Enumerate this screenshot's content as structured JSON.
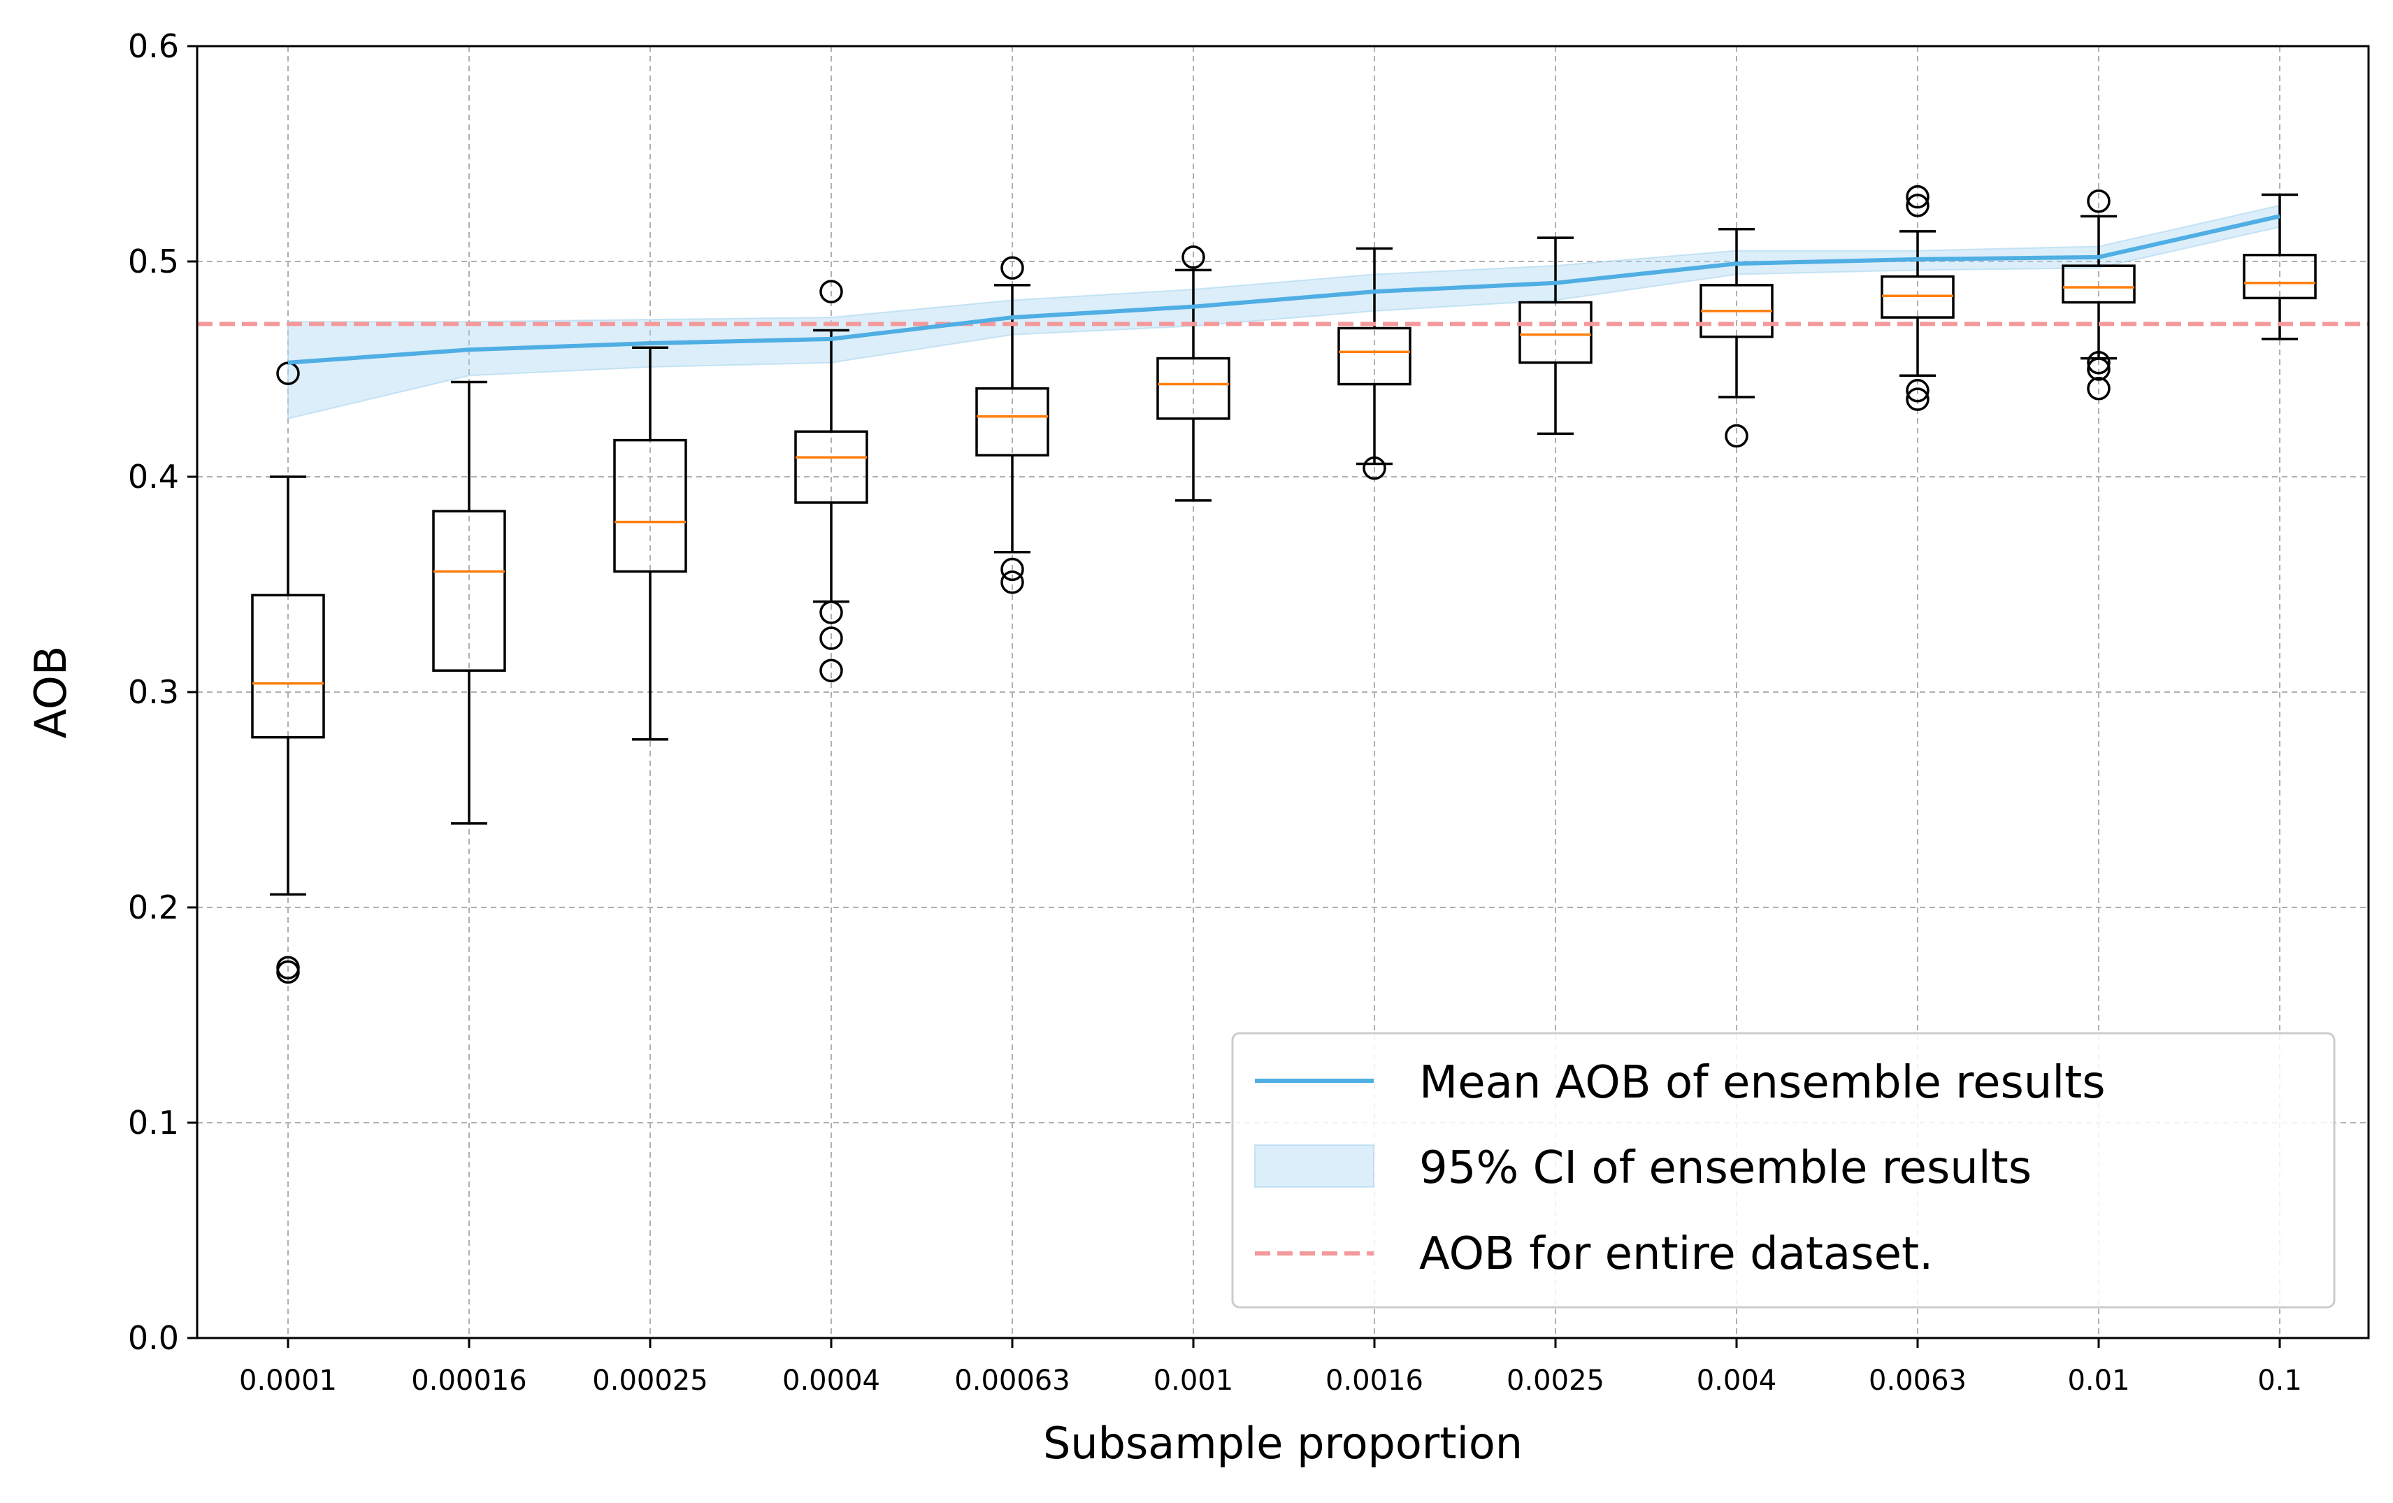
{
  "chart_data": {
    "type": "boxplot",
    "title": "",
    "xlabel": "Subsample proportion",
    "ylabel": "AOB",
    "ylim": [
      0,
      0.6
    ],
    "yticks": [
      "0.0",
      "0.1",
      "0.2",
      "0.3",
      "0.4",
      "0.5",
      "0.6"
    ],
    "grid": true,
    "legend_placement": "lower-right",
    "categories": [
      "0.0001",
      "0.00016",
      "0.00025",
      "0.0004",
      "0.00063",
      "0.001",
      "0.0016",
      "0.0025",
      "0.004",
      "0.0063",
      "0.01",
      "0.1"
    ],
    "boxes": [
      {
        "whisker_low": 0.206,
        "q1": 0.279,
        "median": 0.304,
        "q3": 0.345,
        "whisker_high": 0.4,
        "outliers": [
          0.448,
          0.172,
          0.17
        ]
      },
      {
        "whisker_low": 0.239,
        "q1": 0.31,
        "median": 0.356,
        "q3": 0.384,
        "whisker_high": 0.444,
        "outliers": []
      },
      {
        "whisker_low": 0.278,
        "q1": 0.356,
        "median": 0.379,
        "q3": 0.417,
        "whisker_high": 0.46,
        "outliers": []
      },
      {
        "whisker_low": 0.342,
        "q1": 0.388,
        "median": 0.409,
        "q3": 0.421,
        "whisker_high": 0.468,
        "outliers": [
          0.486,
          0.337,
          0.325,
          0.31
        ]
      },
      {
        "whisker_low": 0.365,
        "q1": 0.41,
        "median": 0.428,
        "q3": 0.441,
        "whisker_high": 0.489,
        "outliers": [
          0.497,
          0.357,
          0.351
        ]
      },
      {
        "whisker_low": 0.389,
        "q1": 0.427,
        "median": 0.443,
        "q3": 0.455,
        "whisker_high": 0.496,
        "outliers": [
          0.502
        ]
      },
      {
        "whisker_low": 0.406,
        "q1": 0.443,
        "median": 0.458,
        "q3": 0.469,
        "whisker_high": 0.506,
        "outliers": [
          0.404
        ]
      },
      {
        "whisker_low": 0.42,
        "q1": 0.453,
        "median": 0.466,
        "q3": 0.481,
        "whisker_high": 0.511,
        "outliers": []
      },
      {
        "whisker_low": 0.437,
        "q1": 0.465,
        "median": 0.477,
        "q3": 0.489,
        "whisker_high": 0.515,
        "outliers": [
          0.419
        ]
      },
      {
        "whisker_low": 0.447,
        "q1": 0.474,
        "median": 0.484,
        "q3": 0.493,
        "whisker_high": 0.514,
        "outliers": [
          0.53,
          0.526,
          0.44,
          0.436
        ]
      },
      {
        "whisker_low": 0.455,
        "q1": 0.481,
        "median": 0.488,
        "q3": 0.498,
        "whisker_high": 0.521,
        "outliers": [
          0.528,
          0.453,
          0.45,
          0.441
        ]
      },
      {
        "whisker_low": 0.464,
        "q1": 0.483,
        "median": 0.49,
        "q3": 0.503,
        "whisker_high": 0.531,
        "outliers": []
      }
    ],
    "series": [
      {
        "name": "Mean AOB of ensemble results",
        "type": "line",
        "color": "#4faee3",
        "values": [
          0.453,
          0.459,
          0.462,
          0.464,
          0.474,
          0.479,
          0.486,
          0.49,
          0.499,
          0.501,
          0.502,
          0.521
        ]
      },
      {
        "name": "95% CI of ensemble results",
        "type": "band",
        "color": "#a8d5f0",
        "lower": [
          0.427,
          0.447,
          0.451,
          0.453,
          0.466,
          0.47,
          0.477,
          0.482,
          0.494,
          0.496,
          0.497,
          0.516
        ],
        "upper": [
          0.472,
          0.472,
          0.473,
          0.474,
          0.482,
          0.487,
          0.494,
          0.498,
          0.505,
          0.505,
          0.507,
          0.526
        ]
      },
      {
        "name": "AOB for entire dataset.",
        "type": "hline",
        "color": "#f4999b",
        "value": 0.471
      }
    ],
    "box_color": "#000000",
    "median_color": "#ff7f0e"
  }
}
